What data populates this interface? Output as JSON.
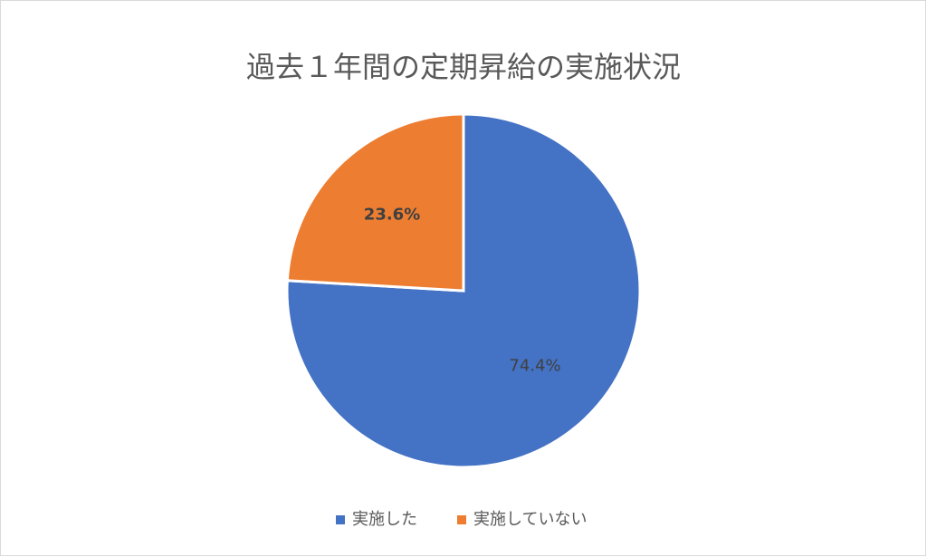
{
  "chart_data": {
    "type": "pie",
    "title": "過去１年間の定期昇給の実施状況",
    "categories": [
      "実施した",
      "実施していない"
    ],
    "values": [
      74.4,
      23.6
    ],
    "value_labels": [
      "74.4%",
      "23.6%"
    ],
    "colors": [
      "#4472c4",
      "#ed7d31"
    ],
    "legend": "bottom"
  }
}
